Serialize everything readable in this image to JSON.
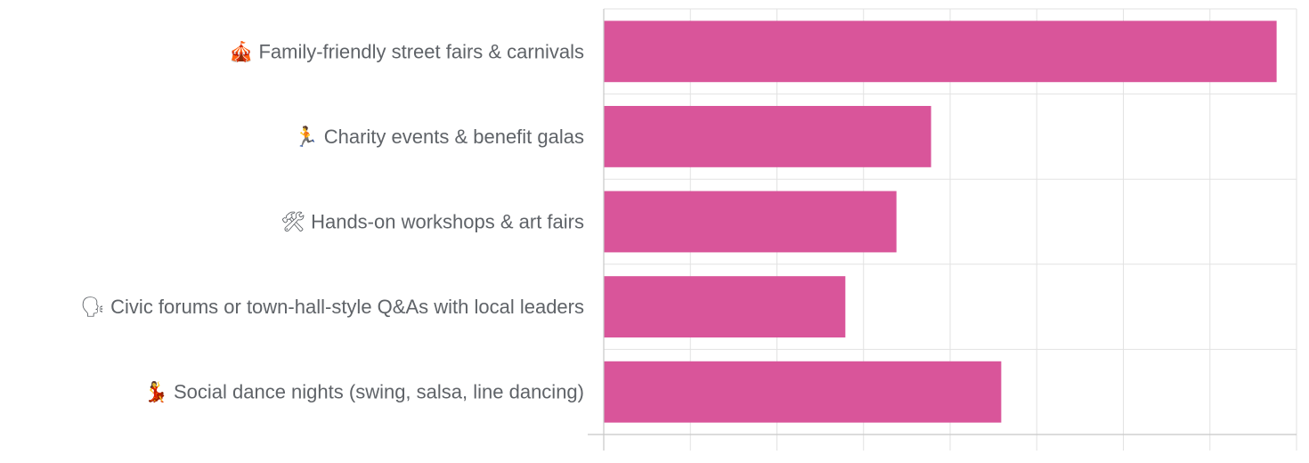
{
  "chart_data": {
    "type": "bar",
    "orientation": "horizontal",
    "categories": [
      "🎪 Family-friendly street fairs & carnivals",
      "🏃 Charity events & benefit galas",
      "🛠 Hands-on workshops & art fairs",
      "🗣 Civic forums or town-hall-style Q&As with local leaders",
      "💃 Social dance nights (swing, salsa, line dancing)"
    ],
    "values": [
      77.7,
      37.8,
      33.8,
      27.9,
      45.9
    ],
    "xlim": [
      0,
      80
    ],
    "x_gridlines": [
      0,
      10,
      20,
      30,
      40,
      50,
      60,
      70,
      80
    ],
    "grid": true,
    "bar_color": "#d9559a",
    "title": "",
    "xlabel": "",
    "ylabel": ""
  }
}
